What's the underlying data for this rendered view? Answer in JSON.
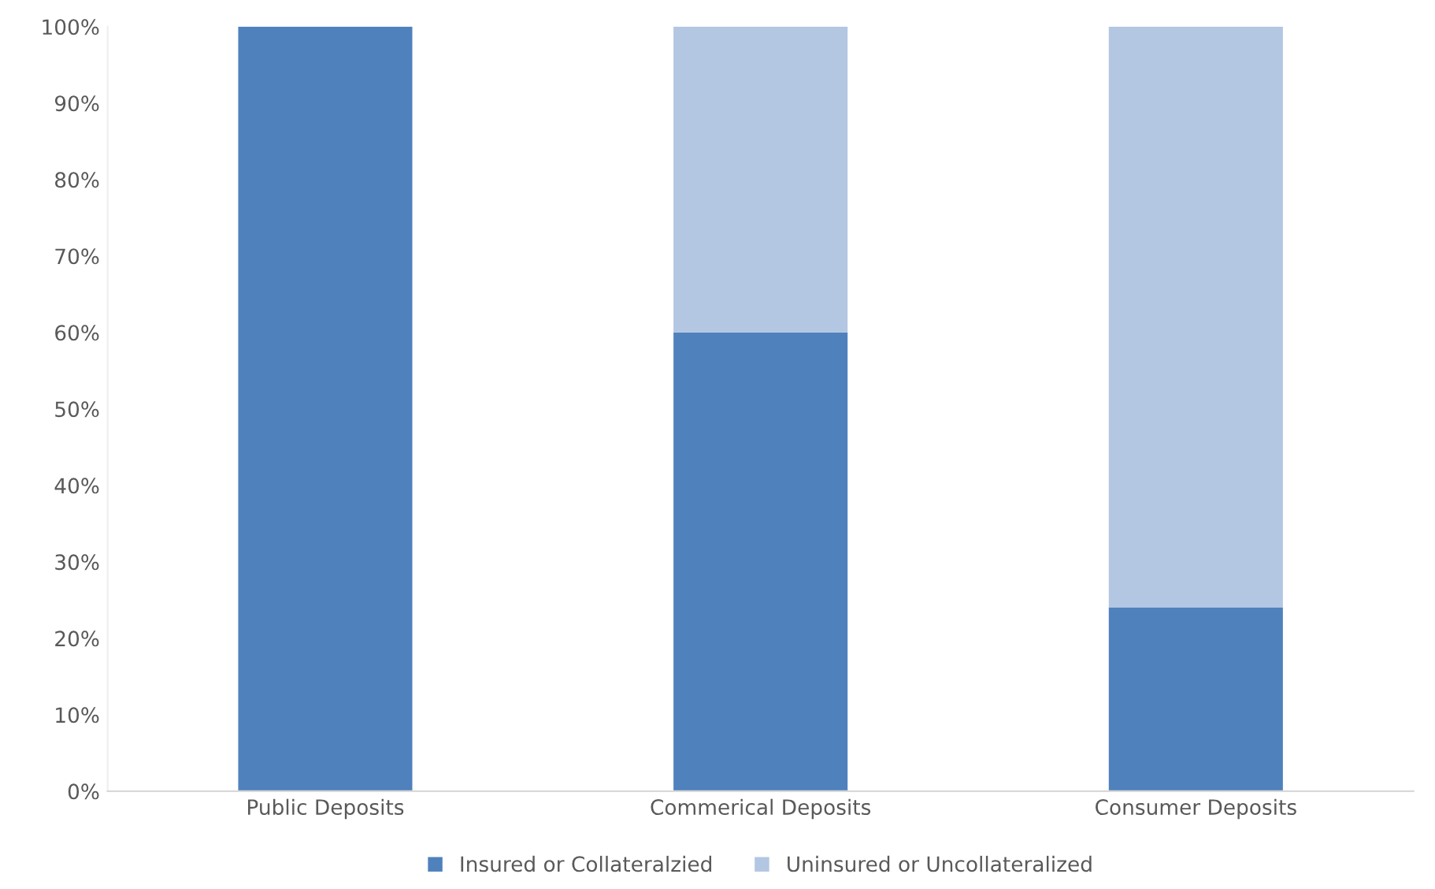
{
  "chart_data": {
    "type": "bar",
    "stacked": true,
    "categories": [
      "Public Deposits",
      "Commerical Deposits",
      "Consumer Deposits"
    ],
    "series": [
      {
        "name": "Insured or Collateralzied",
        "color": "#4f81bd",
        "values": [
          100,
          60,
          24
        ]
      },
      {
        "name": "Uninsured or Uncollateralized",
        "color": "#b3c6e2",
        "values": [
          0,
          40,
          76
        ]
      }
    ],
    "ylim": [
      0,
      100
    ],
    "yticks": [
      {
        "value": 0,
        "label": "0%"
      },
      {
        "value": 10,
        "label": "10%"
      },
      {
        "value": 20,
        "label": "20%"
      },
      {
        "value": 30,
        "label": "30%"
      },
      {
        "value": 40,
        "label": "40%"
      },
      {
        "value": 50,
        "label": "50%"
      },
      {
        "value": 60,
        "label": "60%"
      },
      {
        "value": 70,
        "label": "70%"
      },
      {
        "value": 80,
        "label": "80%"
      },
      {
        "value": 90,
        "label": "90%"
      },
      {
        "value": 100,
        "label": "100%"
      }
    ],
    "grid": false,
    "legend": "bottom"
  }
}
